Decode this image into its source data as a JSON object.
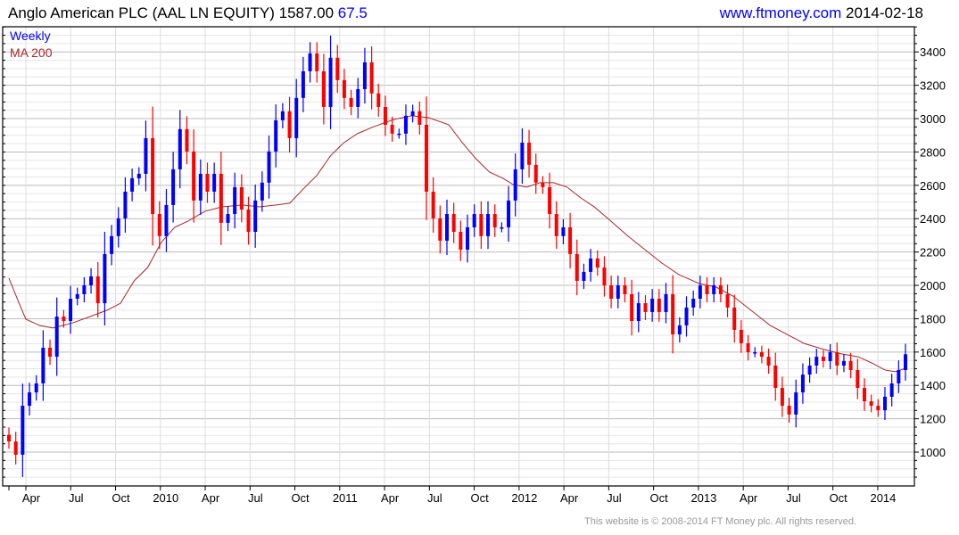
{
  "header": {
    "name": "Anglo American PLC (AAL LN EQUITY)",
    "price": "1587.00",
    "change": "67.5",
    "site": "www.ftmoney.com",
    "date": "2014-02-18"
  },
  "footer": {
    "copyright": "This website is © 2008-2014 FT Money plc. All rights reserved."
  },
  "colors": {
    "up": "#0000ff",
    "down": "#ff0000",
    "ma": "#a52a2a"
  },
  "chart_data": {
    "type": "candlestick",
    "title": "Anglo American PLC (AAL LN EQUITY)",
    "legend": [
      "Weekly",
      "MA 200"
    ],
    "legend_placement": "top-left",
    "ylim": [
      797,
      3551
    ],
    "y_ticks": [
      1000,
      1200,
      1400,
      1600,
      1800,
      2000,
      2200,
      2400,
      2600,
      2800,
      3000,
      3200,
      3400
    ],
    "x_ticks": [
      "Apr",
      "Jul",
      "Oct",
      "2010",
      "Apr",
      "Jul",
      "Oct",
      "2011",
      "Apr",
      "Jul",
      "Oct",
      "2012",
      "Apr",
      "Jul",
      "Oct",
      "2013",
      "Apr",
      "Jul",
      "Oct",
      "2014"
    ],
    "total_weeks": 265,
    "closes": [
      1064,
      984,
      1278,
      1358,
      1412,
      1626,
      1572,
      1813,
      1786,
      1920,
      1947,
      2000,
      2054,
      1893,
      2188,
      2295,
      2402,
      2562,
      2642,
      2669,
      2883,
      2428,
      2295,
      2482,
      2696,
      2937,
      2803,
      2509,
      2669,
      2562,
      2669,
      2375,
      2428,
      2589,
      2455,
      2321,
      2509,
      2616,
      2803,
      2990,
      3044,
      2883,
      3124,
      3284,
      3391,
      3284,
      3070,
      3365,
      3231,
      3124,
      3070,
      3177,
      3338,
      3151,
      3070,
      2963,
      2910,
      2910,
      3017,
      3044,
      2963,
      2562,
      2402,
      2268,
      2428,
      2321,
      2214,
      2348,
      2428,
      2295,
      2428,
      2348,
      2348,
      2509,
      2696,
      2856,
      2723,
      2616,
      2589,
      2428,
      2295,
      2348,
      2188,
      2027,
      2081,
      2161,
      2107,
      2000,
      1920,
      2000,
      1947,
      1786,
      1893,
      1840,
      1920,
      1840,
      1947,
      1706,
      1760,
      1867,
      1920,
      2000,
      1947,
      2000,
      1947,
      1867,
      1733,
      1653,
      1599,
      1599,
      1572,
      1519,
      1385,
      1278,
      1225,
      1358,
      1465,
      1519,
      1572,
      1546,
      1599,
      1519,
      1546,
      1492,
      1385,
      1305,
      1278,
      1251,
      1332,
      1412,
      1492,
      1587
    ],
    "ma200": [
      [
        0,
        2043
      ],
      [
        3,
        1893
      ],
      [
        5,
        1797
      ],
      [
        9,
        1760
      ],
      [
        13,
        1744
      ],
      [
        19,
        1776
      ],
      [
        24,
        1813
      ],
      [
        29,
        1851
      ],
      [
        33,
        1893
      ],
      [
        37,
        2027
      ],
      [
        41,
        2107
      ],
      [
        45,
        2257
      ],
      [
        49,
        2348
      ],
      [
        53,
        2386
      ],
      [
        58,
        2445
      ],
      [
        63,
        2471
      ],
      [
        69,
        2482
      ],
      [
        74,
        2471
      ],
      [
        79,
        2482
      ],
      [
        83,
        2493
      ],
      [
        87,
        2578
      ],
      [
        91,
        2659
      ],
      [
        95,
        2776
      ],
      [
        99,
        2856
      ],
      [
        103,
        2910
      ],
      [
        108,
        2953
      ],
      [
        114,
        2996
      ],
      [
        119,
        3017
      ],
      [
        124,
        3006
      ],
      [
        130,
        2963
      ],
      [
        134,
        2856
      ],
      [
        138,
        2760
      ],
      [
        142,
        2680
      ],
      [
        146,
        2642
      ],
      [
        149,
        2605
      ],
      [
        153,
        2589
      ],
      [
        157,
        2616
      ],
      [
        161,
        2616
      ],
      [
        165,
        2589
      ],
      [
        169,
        2525
      ],
      [
        173,
        2471
      ],
      [
        177,
        2402
      ],
      [
        183,
        2295
      ],
      [
        188,
        2214
      ],
      [
        193,
        2134
      ],
      [
        198,
        2065
      ],
      [
        204,
        2011
      ],
      [
        209,
        1990
      ],
      [
        214,
        1936
      ],
      [
        220,
        1840
      ],
      [
        225,
        1760
      ],
      [
        230,
        1706
      ],
      [
        235,
        1652
      ],
      [
        241,
        1615
      ],
      [
        246,
        1589
      ],
      [
        251,
        1572
      ],
      [
        255,
        1535
      ],
      [
        259,
        1492
      ],
      [
        262,
        1482
      ],
      [
        265,
        1503
      ]
    ]
  }
}
